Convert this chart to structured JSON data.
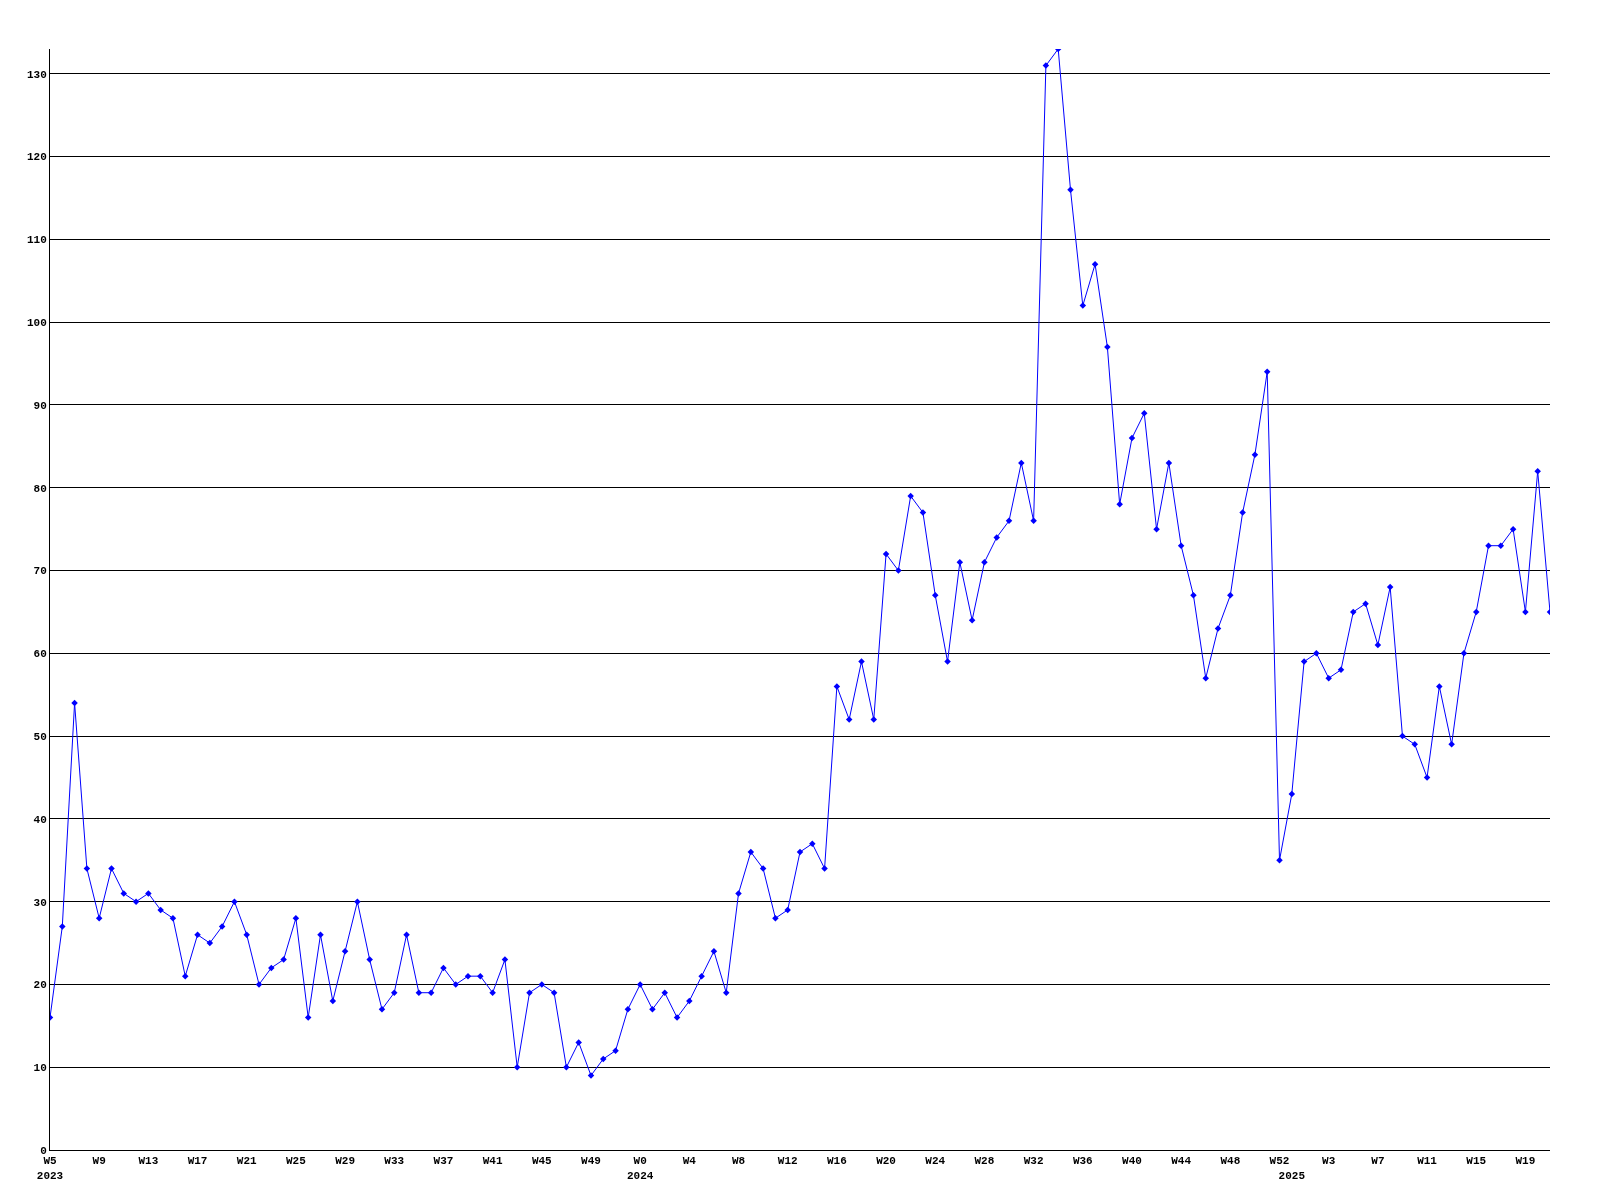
{
  "chart_data": {
    "type": "line",
    "categories": [
      "W5\n2023",
      null,
      null,
      null,
      "W9",
      null,
      null,
      null,
      "W13",
      null,
      null,
      null,
      "W17",
      null,
      null,
      null,
      "W21",
      null,
      null,
      null,
      "W25",
      null,
      null,
      null,
      "W29",
      null,
      null,
      null,
      "W33",
      null,
      null,
      null,
      "W37",
      null,
      null,
      null,
      "W41",
      null,
      null,
      null,
      "W45",
      null,
      null,
      null,
      "W49",
      null,
      null,
      null,
      "W0\n2024",
      null,
      null,
      null,
      "W4",
      null,
      null,
      null,
      "W8",
      null,
      null,
      null,
      "W12",
      null,
      null,
      null,
      "W16",
      null,
      null,
      null,
      "W20",
      null,
      null,
      null,
      "W24",
      null,
      null,
      null,
      "W28",
      null,
      null,
      null,
      "W32",
      null,
      null,
      null,
      "W36",
      null,
      null,
      null,
      "W40",
      null,
      null,
      null,
      "W44",
      null,
      null,
      null,
      "W48",
      null,
      null,
      null,
      "W52",
      "\n2025",
      null,
      null,
      "W3",
      null,
      null,
      null,
      "W7",
      null,
      null,
      null,
      "W11",
      null,
      null,
      null,
      "W15",
      null,
      null,
      null,
      "W19",
      null,
      null
    ],
    "series": [
      {
        "color": "#0000ff",
        "values": [
          16,
          27,
          54,
          34,
          28,
          34,
          31,
          30,
          31,
          29,
          28,
          21,
          26,
          25,
          27,
          30,
          26,
          20,
          22,
          23,
          28,
          16,
          26,
          18,
          24,
          30,
          23,
          17,
          19,
          26,
          19,
          19,
          22,
          20,
          21,
          21,
          19,
          23,
          10,
          19,
          20,
          19,
          10,
          13,
          9,
          11,
          12,
          17,
          20,
          17,
          19,
          16,
          18,
          21,
          24,
          19,
          31,
          36,
          34,
          28,
          29,
          36,
          37,
          34,
          56,
          52,
          59,
          52,
          72,
          70,
          79,
          77,
          67,
          59,
          71,
          64,
          71,
          74,
          76,
          83,
          76,
          131,
          133,
          116,
          102,
          107,
          97,
          78,
          86,
          89,
          75,
          83,
          73,
          67,
          57,
          63,
          67,
          77,
          84,
          94,
          35,
          43,
          59,
          60,
          57,
          58,
          65,
          66,
          61,
          68,
          50,
          49,
          45,
          56,
          49,
          60,
          65,
          73,
          73,
          75,
          65,
          82,
          65
        ]
      }
    ],
    "ylim": [
      0,
      133
    ],
    "yticks": [
      0,
      10,
      20,
      30,
      40,
      50,
      60,
      70,
      80,
      90,
      100,
      110,
      120,
      130
    ],
    "grid": "y",
    "marker": "diamond",
    "line_style": "solid"
  }
}
